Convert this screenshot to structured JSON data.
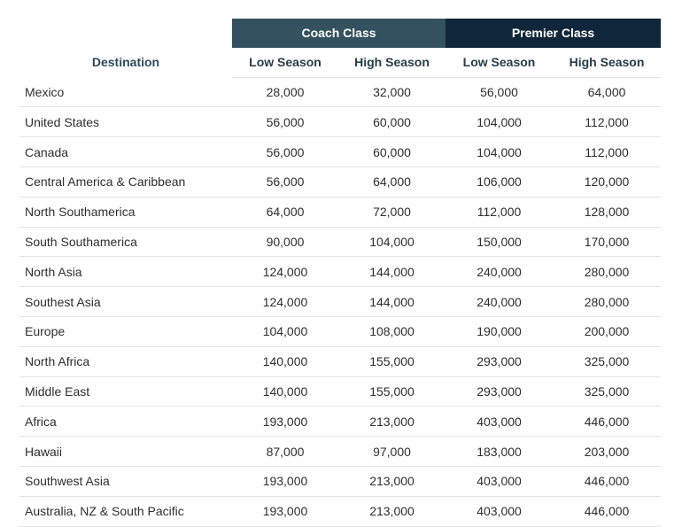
{
  "table": {
    "group_headers": [
      "Coach Class",
      "Premier Class"
    ],
    "columns": [
      "Destination",
      "Low Season",
      "High Season",
      "Low Season",
      "High Season"
    ],
    "rows": [
      [
        "Mexico",
        "28,000",
        "32,000",
        "56,000",
        "64,000"
      ],
      [
        "United States",
        "56,000",
        "60,000",
        "104,000",
        "112,000"
      ],
      [
        "Canada",
        "56,000",
        "60,000",
        "104,000",
        "112,000"
      ],
      [
        "Central America & Caribbean",
        "56,000",
        "64,000",
        "106,000",
        "120,000"
      ],
      [
        "North Southamerica",
        "64,000",
        "72,000",
        "112,000",
        "128,000"
      ],
      [
        "South Southamerica",
        "90,000",
        "104,000",
        "150,000",
        "170,000"
      ],
      [
        "North Asia",
        "124,000",
        "144,000",
        "240,000",
        "280,000"
      ],
      [
        "Southest Asia",
        "124,000",
        "144,000",
        "240,000",
        "280,000"
      ],
      [
        "Europe",
        "104,000",
        "108,000",
        "190,000",
        "200,000"
      ],
      [
        "North Africa",
        "140,000",
        "155,000",
        "293,000",
        "325,000"
      ],
      [
        "Middle East",
        "140,000",
        "155,000",
        "293,000",
        "325,000"
      ],
      [
        "Africa",
        "193,000",
        "213,000",
        "403,000",
        "446,000"
      ],
      [
        "Hawaii",
        "87,000",
        "97,000",
        "183,000",
        "203,000"
      ],
      [
        "Southwest Asia",
        "193,000",
        "213,000",
        "403,000",
        "446,000"
      ],
      [
        "Australia, NZ & South Pacific",
        "193,000",
        "213,000",
        "403,000",
        "446,000"
      ]
    ]
  }
}
